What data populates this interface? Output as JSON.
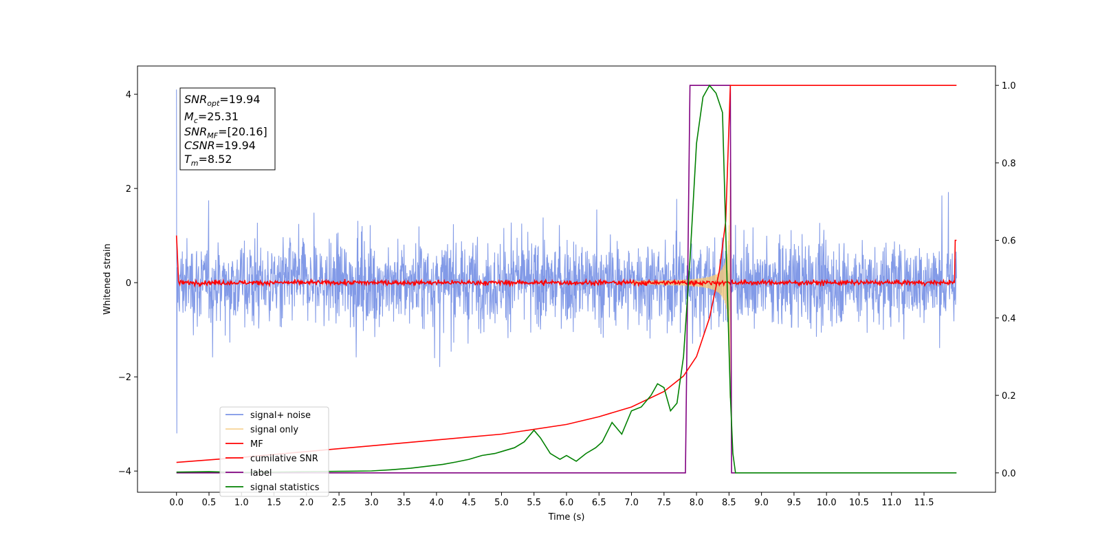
{
  "chart_data": {
    "type": "line",
    "title": "",
    "xlabel": "Time (s)",
    "ylabel": "Whitened strain",
    "xlim": [
      -0.6,
      12.6
    ],
    "ylim": [
      -4.45,
      4.6
    ],
    "y2lim": [
      -0.05,
      1.05
    ],
    "x_ticks": [
      "0.0",
      "0.5",
      "1.0",
      "1.5",
      "2.0",
      "2.5",
      "3.0",
      "3.5",
      "4.0",
      "4.5",
      "5.0",
      "5.5",
      "6.0",
      "6.5",
      "7.0",
      "7.5",
      "8.0",
      "8.5",
      "9.0",
      "9.5",
      "10.0",
      "10.5",
      "11.0",
      "11.5"
    ],
    "y_ticks": [
      "4",
      "2",
      "0",
      "−2",
      "−4"
    ],
    "y2_ticks": [
      "1.0",
      "0.8",
      "0.6",
      "0.4",
      "0.2",
      "0.0"
    ],
    "grid": false,
    "legend_position": "lower-left",
    "info_box": {
      "snr_opt": {
        "main": "SNR",
        "sub": "opt",
        "value": "=19.94"
      },
      "mc": {
        "main": "M",
        "sub": "c",
        "value": "=25.31"
      },
      "snr_mf": {
        "main": "SNR",
        "sub": "MF",
        "value": "=[20.16]"
      },
      "csnr": {
        "main": "CSNR",
        "value": "=19.94"
      },
      "tm": {
        "main": "T",
        "sub": "m",
        "value": "=8.52"
      }
    },
    "series": [
      {
        "name": "signal+ noise",
        "color": "#7b95e6",
        "axis": "left",
        "style": "noise band approx ±1.5 with spikes to ±2.9, from 0 to 12"
      },
      {
        "name": "signal only",
        "color": "#f5c97a",
        "axis": "left",
        "style": "chirp growing from 7.0 s, peak amplitude ~3 at 8.5 s, then zero"
      },
      {
        "name": "MF",
        "color": "#ff0000",
        "axis": "left",
        "style": "near zero with small jitter; edge values ~1 at 0 and 12"
      },
      {
        "name": "cumilative SNR",
        "color": "#ff0000",
        "axis": "right",
        "x": [
          0.0,
          1.0,
          2.0,
          3.0,
          4.0,
          5.0,
          6.0,
          6.5,
          7.0,
          7.5,
          7.8,
          8.0,
          8.2,
          8.35,
          8.45,
          8.52,
          12.0
        ],
        "y": [
          0.027,
          0.04,
          0.055,
          0.07,
          0.085,
          0.1,
          0.125,
          0.145,
          0.17,
          0.21,
          0.25,
          0.3,
          0.4,
          0.52,
          0.65,
          1.0,
          1.0
        ]
      },
      {
        "name": "label",
        "color": "#800080",
        "axis": "right",
        "x": [
          0.0,
          7.83,
          7.9,
          8.52,
          8.53,
          8.54,
          8.6
        ],
        "y": [
          0.0,
          0.0,
          1.0,
          1.0,
          0.5,
          0.0,
          0.0
        ]
      },
      {
        "name": "signal statistics",
        "color": "#008000",
        "axis": "right",
        "x": [
          0.0,
          0.5,
          1.0,
          1.5,
          2.0,
          2.5,
          3.0,
          3.3,
          3.6,
          3.9,
          4.1,
          4.3,
          4.5,
          4.7,
          4.9,
          5.0,
          5.2,
          5.35,
          5.5,
          5.6,
          5.75,
          5.9,
          6.0,
          6.15,
          6.3,
          6.45,
          6.55,
          6.7,
          6.85,
          7.0,
          7.15,
          7.3,
          7.4,
          7.5,
          7.6,
          7.7,
          7.8,
          7.9,
          8.0,
          8.1,
          8.2,
          8.3,
          8.4,
          8.47,
          8.52,
          8.56,
          8.6,
          12.0
        ],
        "y": [
          0.002,
          0.003,
          0.001,
          0.002,
          0.003,
          0.004,
          0.005,
          0.008,
          0.012,
          0.018,
          0.022,
          0.028,
          0.035,
          0.045,
          0.05,
          0.055,
          0.065,
          0.08,
          0.11,
          0.09,
          0.05,
          0.035,
          0.045,
          0.03,
          0.05,
          0.065,
          0.08,
          0.13,
          0.1,
          0.16,
          0.17,
          0.2,
          0.23,
          0.22,
          0.16,
          0.18,
          0.3,
          0.55,
          0.85,
          0.97,
          1.0,
          0.98,
          0.93,
          0.5,
          0.2,
          0.05,
          0.0,
          0.0
        ]
      }
    ]
  }
}
